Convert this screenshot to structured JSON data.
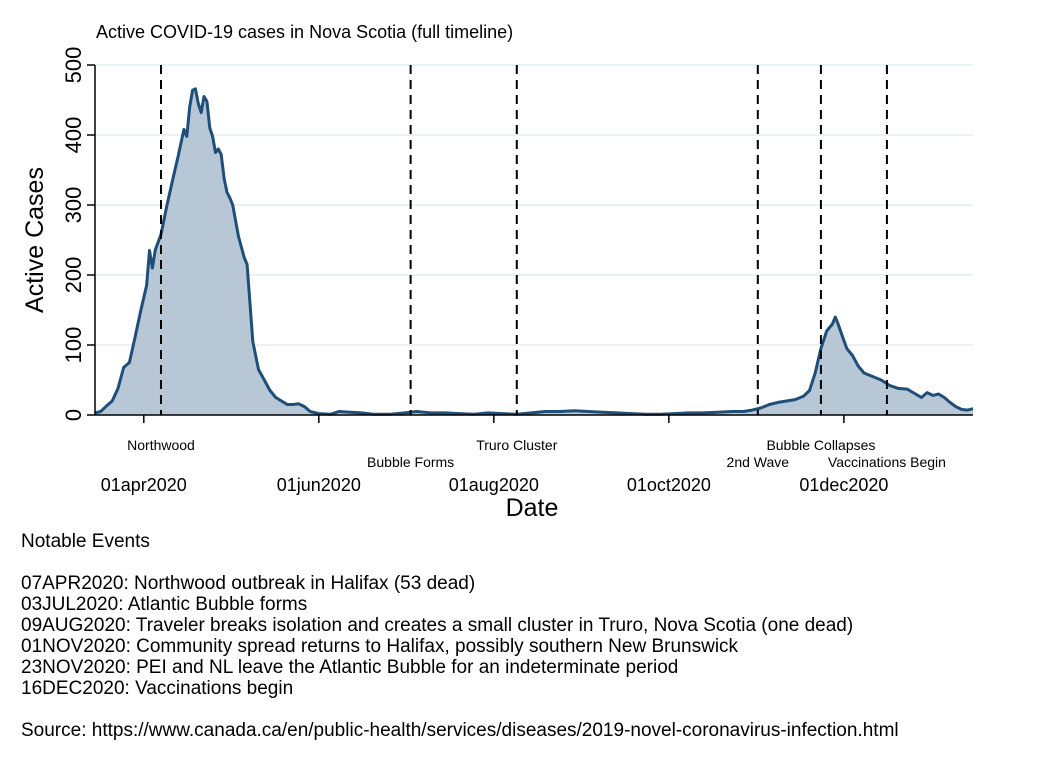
{
  "chart_data": {
    "type": "area",
    "title": "Active COVID-19 cases in Nova Scotia (full timeline)",
    "xlabel": "Date",
    "ylabel": "Active Cases",
    "ylim": [
      0,
      500
    ],
    "xlim": [
      "2020-03-15",
      "2021-01-15"
    ],
    "yticks": [
      0,
      100,
      200,
      300,
      400,
      500
    ],
    "xticks": [
      {
        "date": "2020-04-01",
        "label": "01apr2020"
      },
      {
        "date": "2020-06-01",
        "label": "01jun2020"
      },
      {
        "date": "2020-08-01",
        "label": "01aug2020"
      },
      {
        "date": "2020-10-01",
        "label": "01oct2020"
      },
      {
        "date": "2020-12-01",
        "label": "01dec2020"
      }
    ],
    "grid": true,
    "colors": {
      "line": "#1f4e79",
      "fill": "#b7c7d6",
      "grid": "#e3ecef"
    },
    "events": [
      {
        "date": "2020-04-07",
        "label": "Northwood",
        "row": "upper"
      },
      {
        "date": "2020-07-03",
        "label": "Bubble Forms",
        "row": "lower"
      },
      {
        "date": "2020-08-09",
        "label": "Truro Cluster",
        "row": "upper"
      },
      {
        "date": "2020-11-01",
        "label": "2nd Wave",
        "row": "lower"
      },
      {
        "date": "2020-11-23",
        "label": "Bubble Collapses",
        "row": "upper"
      },
      {
        "date": "2020-12-16",
        "label": "Vaccinations Begin",
        "row": "lower"
      }
    ],
    "series": [
      {
        "points": [
          [
            "2020-03-15",
            3
          ],
          [
            "2020-03-17",
            5
          ],
          [
            "2020-03-19",
            13
          ],
          [
            "2020-03-21",
            20
          ],
          [
            "2020-03-23",
            38
          ],
          [
            "2020-03-25",
            68
          ],
          [
            "2020-03-27",
            75
          ],
          [
            "2020-03-29",
            112
          ],
          [
            "2020-03-31",
            150
          ],
          [
            "2020-04-02",
            185
          ],
          [
            "2020-04-03",
            235
          ],
          [
            "2020-04-04",
            210
          ],
          [
            "2020-04-05",
            236
          ],
          [
            "2020-04-07",
            258
          ],
          [
            "2020-04-09",
            298
          ],
          [
            "2020-04-11",
            335
          ],
          [
            "2020-04-13",
            370
          ],
          [
            "2020-04-15",
            408
          ],
          [
            "2020-04-16",
            398
          ],
          [
            "2020-04-17",
            440
          ],
          [
            "2020-04-18",
            464
          ],
          [
            "2020-04-19",
            466
          ],
          [
            "2020-04-20",
            445
          ],
          [
            "2020-04-21",
            432
          ],
          [
            "2020-04-22",
            455
          ],
          [
            "2020-04-23",
            448
          ],
          [
            "2020-04-24",
            410
          ],
          [
            "2020-04-25",
            398
          ],
          [
            "2020-04-26",
            375
          ],
          [
            "2020-04-27",
            380
          ],
          [
            "2020-04-28",
            372
          ],
          [
            "2020-04-29",
            338
          ],
          [
            "2020-04-30",
            318
          ],
          [
            "2020-05-01",
            310
          ],
          [
            "2020-05-02",
            300
          ],
          [
            "2020-05-04",
            255
          ],
          [
            "2020-05-06",
            225
          ],
          [
            "2020-05-07",
            215
          ],
          [
            "2020-05-09",
            105
          ],
          [
            "2020-05-11",
            65
          ],
          [
            "2020-05-13",
            50
          ],
          [
            "2020-05-15",
            35
          ],
          [
            "2020-05-17",
            25
          ],
          [
            "2020-05-19",
            20
          ],
          [
            "2020-05-21",
            15
          ],
          [
            "2020-05-23",
            15
          ],
          [
            "2020-05-25",
            16
          ],
          [
            "2020-05-27",
            12
          ],
          [
            "2020-05-29",
            5
          ],
          [
            "2020-06-01",
            2
          ],
          [
            "2020-06-05",
            1
          ],
          [
            "2020-06-08",
            5
          ],
          [
            "2020-06-12",
            4
          ],
          [
            "2020-06-16",
            3
          ],
          [
            "2020-06-20",
            1
          ],
          [
            "2020-06-26",
            1
          ],
          [
            "2020-07-01",
            3
          ],
          [
            "2020-07-05",
            5
          ],
          [
            "2020-07-10",
            3
          ],
          [
            "2020-07-15",
            3
          ],
          [
            "2020-07-20",
            2
          ],
          [
            "2020-07-25",
            1
          ],
          [
            "2020-07-30",
            3
          ],
          [
            "2020-08-04",
            2
          ],
          [
            "2020-08-09",
            1
          ],
          [
            "2020-08-14",
            3
          ],
          [
            "2020-08-19",
            5
          ],
          [
            "2020-08-24",
            5
          ],
          [
            "2020-08-29",
            6
          ],
          [
            "2020-09-03",
            5
          ],
          [
            "2020-09-08",
            4
          ],
          [
            "2020-09-13",
            3
          ],
          [
            "2020-09-18",
            2
          ],
          [
            "2020-09-23",
            1
          ],
          [
            "2020-09-28",
            1
          ],
          [
            "2020-10-03",
            2
          ],
          [
            "2020-10-08",
            3
          ],
          [
            "2020-10-13",
            3
          ],
          [
            "2020-10-18",
            4
          ],
          [
            "2020-10-23",
            5
          ],
          [
            "2020-10-27",
            5
          ],
          [
            "2020-10-30",
            7
          ],
          [
            "2020-11-02",
            10
          ],
          [
            "2020-11-05",
            15
          ],
          [
            "2020-11-08",
            18
          ],
          [
            "2020-11-11",
            20
          ],
          [
            "2020-11-14",
            22
          ],
          [
            "2020-11-17",
            27
          ],
          [
            "2020-11-19",
            35
          ],
          [
            "2020-11-21",
            60
          ],
          [
            "2020-11-23",
            95
          ],
          [
            "2020-11-25",
            120
          ],
          [
            "2020-11-27",
            130
          ],
          [
            "2020-11-28",
            140
          ],
          [
            "2020-11-29",
            130
          ],
          [
            "2020-11-30",
            118
          ],
          [
            "2020-12-02",
            95
          ],
          [
            "2020-12-04",
            85
          ],
          [
            "2020-12-06",
            70
          ],
          [
            "2020-12-08",
            60
          ],
          [
            "2020-12-11",
            55
          ],
          [
            "2020-12-14",
            50
          ],
          [
            "2020-12-17",
            42
          ],
          [
            "2020-12-20",
            38
          ],
          [
            "2020-12-23",
            37
          ],
          [
            "2020-12-26",
            30
          ],
          [
            "2020-12-28",
            25
          ],
          [
            "2020-12-30",
            32
          ],
          [
            "2021-01-01",
            28
          ],
          [
            "2021-01-03",
            30
          ],
          [
            "2021-01-05",
            25
          ],
          [
            "2021-01-07",
            18
          ],
          [
            "2021-01-09",
            12
          ],
          [
            "2021-01-11",
            8
          ],
          [
            "2021-01-13",
            7
          ],
          [
            "2021-01-15",
            9
          ]
        ]
      }
    ]
  },
  "notes": {
    "heading": "Notable Events",
    "events": [
      "07APR2020: Northwood outbreak in Halifax (53 dead)",
      "03JUL2020: Atlantic Bubble forms",
      "09AUG2020: Traveler breaks isolation and creates a small cluster in Truro, Nova Scotia (one dead)",
      "01NOV2020: Community spread returns to Halifax, possibly southern New Brunswick",
      "23NOV2020: PEI and NL leave the Atlantic Bubble for an indeterminate period",
      "16DEC2020: Vaccinations begin"
    ],
    "source": "Source: https://www.canada.ca/en/public-health/services/diseases/2019-novel-coronavirus-infection.html"
  }
}
